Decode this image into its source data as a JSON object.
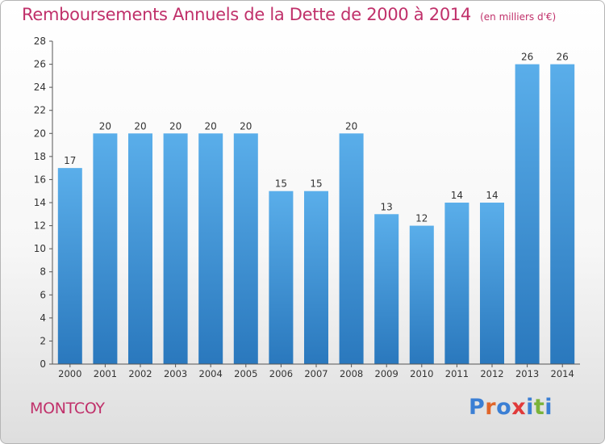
{
  "chart_data": {
    "type": "bar",
    "title": "Remboursements Annuels de la Dette de 2000 à 2014",
    "subtitle": "(en milliers d'€)",
    "categories": [
      "2000",
      "2001",
      "2002",
      "2003",
      "2004",
      "2005",
      "2006",
      "2007",
      "2008",
      "2009",
      "2010",
      "2011",
      "2012",
      "2013",
      "2014"
    ],
    "values": [
      17,
      20,
      20,
      20,
      20,
      20,
      15,
      15,
      20,
      13,
      12,
      14,
      14,
      26,
      26
    ],
    "ylim": [
      0,
      28
    ],
    "yticks": [
      0,
      2,
      4,
      6,
      8,
      10,
      12,
      14,
      16,
      18,
      20,
      22,
      24,
      26,
      28
    ],
    "xlabel": "",
    "ylabel": "",
    "grid": false,
    "bar_color": "#3a8fd8",
    "title_color": "#c0306a"
  },
  "footer": {
    "commune": "MONTCOY",
    "brand": "Proxiti",
    "brand_colors": [
      "#3b7fd4",
      "#e0662a",
      "#3b7fd4",
      "#e03a3a",
      "#3b7fd4",
      "#7ab33a",
      "#3b7fd4"
    ]
  }
}
